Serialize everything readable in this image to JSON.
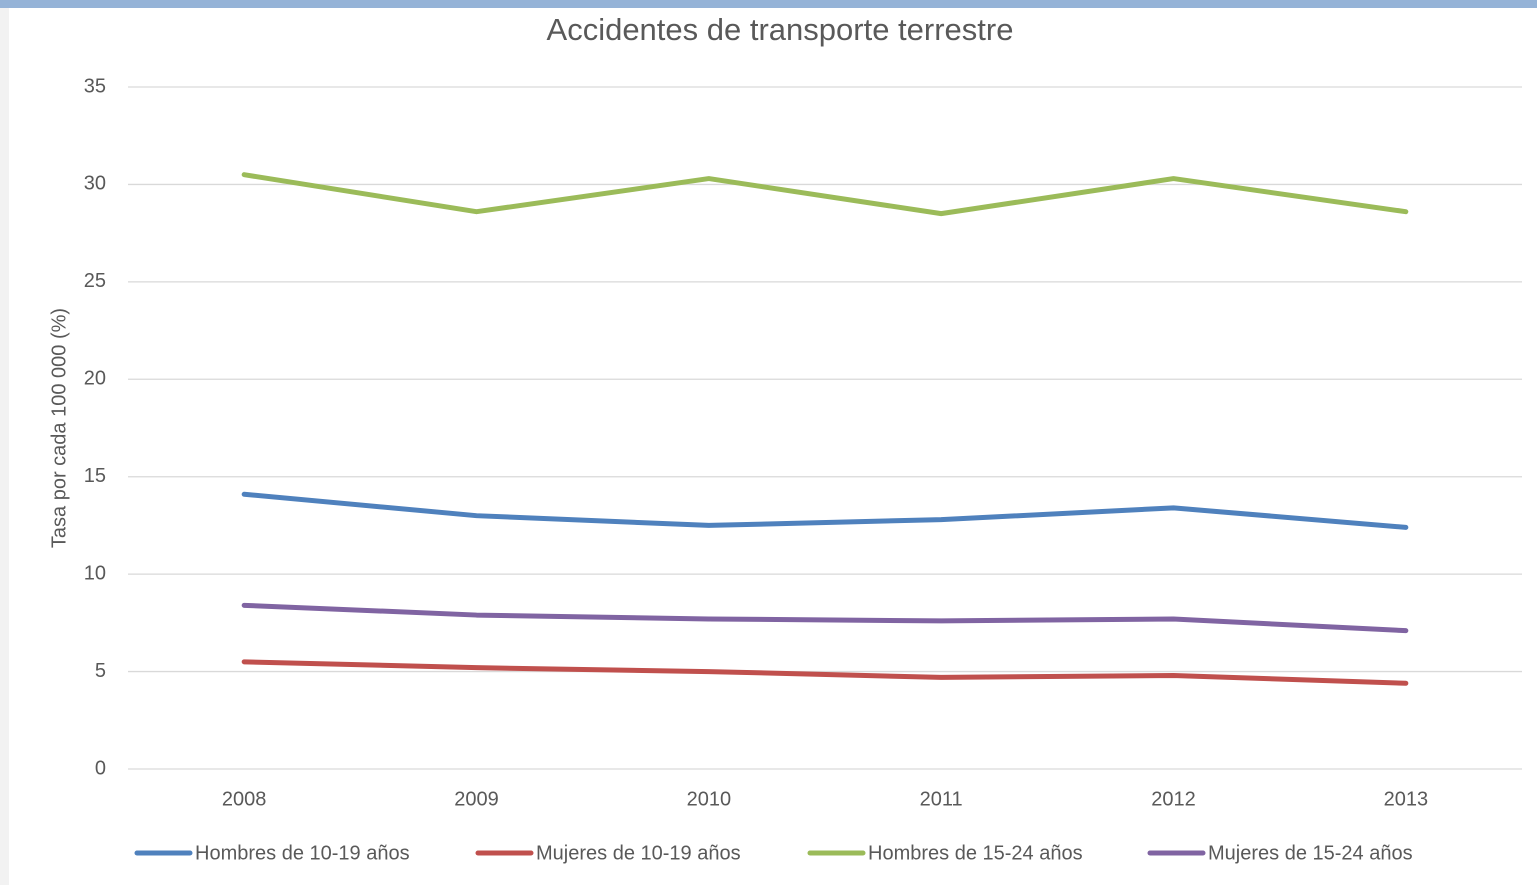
{
  "chart_data": {
    "type": "line",
    "title": "Accidentes de transporte terrestre",
    "y_label": "Tasa por cada 100 000 (%)",
    "categories": [
      "2008",
      "2009",
      "2010",
      "2011",
      "2012",
      "2013"
    ],
    "series": [
      {
        "name": "Hombres de 10-19 años",
        "color": "#4f81bd",
        "values": [
          14.1,
          13.0,
          12.5,
          12.8,
          13.4,
          12.4
        ]
      },
      {
        "name": "Mujeres de 10-19 años",
        "color": "#c0504d",
        "values": [
          5.5,
          5.2,
          5.0,
          4.7,
          4.8,
          4.4
        ]
      },
      {
        "name": "Hombres de 15-24 años",
        "color": "#9bbb59",
        "values": [
          30.5,
          28.6,
          30.3,
          28.5,
          30.3,
          28.6
        ]
      },
      {
        "name": "Mujeres de 15-24 años",
        "color": "#8064a2",
        "values": [
          8.4,
          7.9,
          7.7,
          7.6,
          7.7,
          7.1
        ]
      }
    ],
    "ylim": [
      0,
      35
    ],
    "yticks": [
      0,
      5,
      10,
      15,
      20,
      25,
      30,
      35
    ],
    "grid": true,
    "legend": "bottom"
  }
}
